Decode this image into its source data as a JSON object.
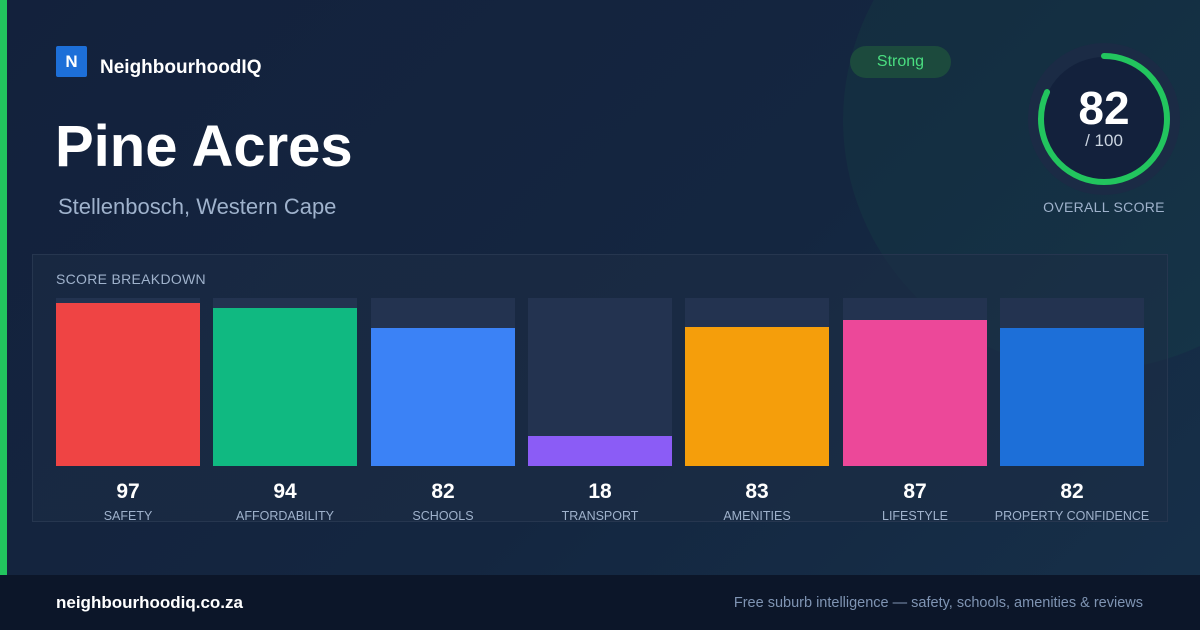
{
  "brand": {
    "logo_letter": "N",
    "name": "NeighbourhoodIQ"
  },
  "header": {
    "title": "Pine Acres",
    "subtitle": "Stellenbosch, Western Cape",
    "badge": "Strong"
  },
  "overall": {
    "score": "82",
    "max_label": "/ 100",
    "score_fraction": 0.82,
    "label": "OVERALL SCORE",
    "ring_color": "#22c55e"
  },
  "breakdown": {
    "title": "SCORE BREAKDOWN",
    "max": 100,
    "items": [
      {
        "label": "SAFETY",
        "value": 97,
        "color": "#ef4444"
      },
      {
        "label": "AFFORDABILITY",
        "value": 94,
        "color": "#10b981"
      },
      {
        "label": "SCHOOLS",
        "value": 82,
        "color": "#3b82f6"
      },
      {
        "label": "TRANSPORT",
        "value": 18,
        "color": "#8b5cf6"
      },
      {
        "label": "AMENITIES",
        "value": 83,
        "color": "#f59e0b"
      },
      {
        "label": "LIFESTYLE",
        "value": 87,
        "color": "#ec4899"
      },
      {
        "label": "PROPERTY CONFIDENCE",
        "value": 82,
        "color": "#1d6fd8"
      }
    ]
  },
  "footer": {
    "url": "neighbourhoodiq.co.za",
    "tagline": "Free suburb intelligence — safety, schools, amenities & reviews"
  }
}
